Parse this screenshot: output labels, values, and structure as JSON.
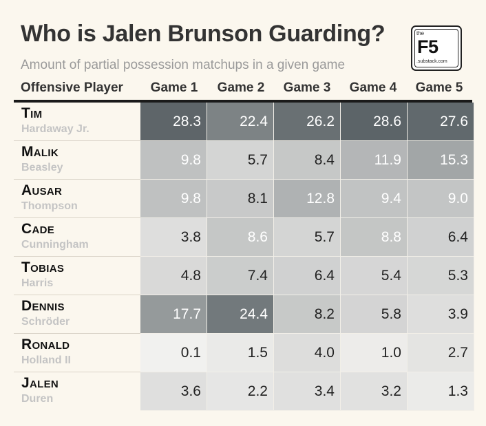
{
  "header": {
    "title": "Who is Jalen Brunson Guarding?",
    "subtitle": "Amount of partial possession matchups in a given game"
  },
  "logo": {
    "the": "the",
    "name": "F5",
    "domain": ".substack.com"
  },
  "colors": {
    "background": "#fbf7ee",
    "scale_low": "#f2f1ef",
    "scale_high": "#5c6468"
  },
  "chart_data": {
    "type": "heatmap",
    "title": "Who is Jalen Brunson Guarding?",
    "subtitle": "Amount of partial possession matchups in a given game",
    "row_header": "Offensive Player",
    "columns": [
      "Game 1",
      "Game 2",
      "Game 3",
      "Game 4",
      "Game 5"
    ],
    "value_range": [
      0,
      28.6
    ],
    "rows": [
      {
        "first": "Tim",
        "last": "Hardaway Jr.",
        "values": [
          "28.3",
          "22.4",
          "26.2",
          "28.6",
          "27.6"
        ]
      },
      {
        "first": "Malik",
        "last": "Beasley",
        "values": [
          "9.8",
          "5.7",
          "8.4",
          "11.9",
          "15.3"
        ]
      },
      {
        "first": "Ausar",
        "last": "Thompson",
        "values": [
          "9.8",
          "8.1",
          "12.8",
          "9.4",
          "9.0"
        ]
      },
      {
        "first": "Cade",
        "last": "Cunningham",
        "values": [
          "3.8",
          "8.6",
          "5.7",
          "8.8",
          "6.4"
        ]
      },
      {
        "first": "Tobias",
        "last": "Harris",
        "values": [
          "4.8",
          "7.4",
          "6.4",
          "5.4",
          "5.3"
        ]
      },
      {
        "first": "Dennis",
        "last": "Schröder",
        "values": [
          "17.7",
          "24.4",
          "8.2",
          "5.8",
          "3.9"
        ]
      },
      {
        "first": "Ronald",
        "last": "Holland II",
        "values": [
          "0.1",
          "1.5",
          "4.0",
          "1.0",
          "2.7"
        ]
      },
      {
        "first": "Jalen",
        "last": "Duren",
        "values": [
          "3.6",
          "2.2",
          "3.4",
          "3.2",
          "1.3"
        ]
      }
    ]
  }
}
